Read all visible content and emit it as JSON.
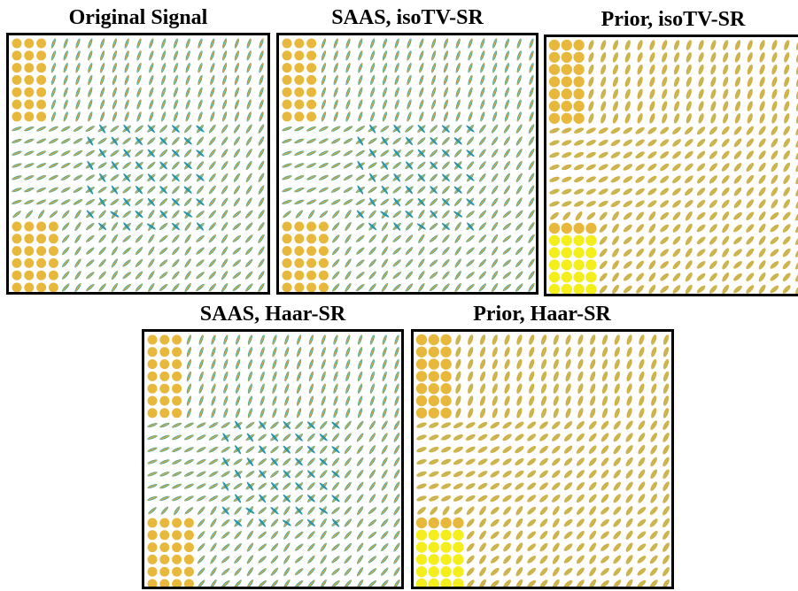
{
  "panels": [
    {
      "title": "Original Signal"
    },
    {
      "title": "SAAS, isoTV-SR"
    },
    {
      "title": "Prior, isoTV-SR"
    },
    {
      "title": "SAAS, Haar-SR"
    },
    {
      "title": "Prior, Haar-SR"
    }
  ]
}
